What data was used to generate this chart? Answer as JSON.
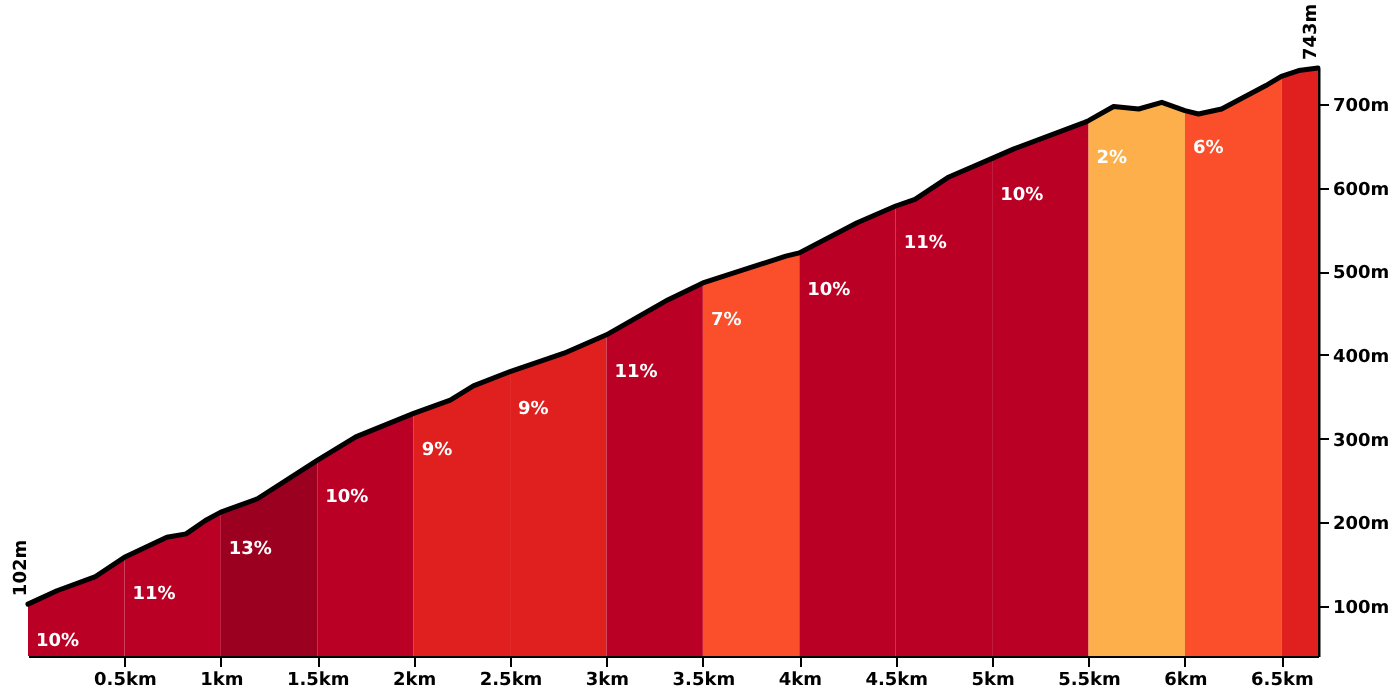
{
  "chart_data": {
    "type": "area",
    "xlim": [
      0,
      6.69
    ],
    "ylim": [
      40,
      743
    ],
    "xticks": [
      {
        "value": 0.5,
        "label": "0.5km"
      },
      {
        "value": 1,
        "label": "1km"
      },
      {
        "value": 1.5,
        "label": "1.5km"
      },
      {
        "value": 2,
        "label": "2km"
      },
      {
        "value": 2.5,
        "label": "2.5km"
      },
      {
        "value": 3,
        "label": "3km"
      },
      {
        "value": 3.5,
        "label": "3.5km"
      },
      {
        "value": 4,
        "label": "4km"
      },
      {
        "value": 4.5,
        "label": "4.5km"
      },
      {
        "value": 5,
        "label": "5km"
      },
      {
        "value": 5.5,
        "label": "5.5km"
      },
      {
        "value": 6,
        "label": "6km"
      },
      {
        "value": 6.5,
        "label": "6.5km"
      }
    ],
    "yticks": [
      {
        "value": 100,
        "label": "100m"
      },
      {
        "value": 200,
        "label": "200m"
      },
      {
        "value": 300,
        "label": "300m"
      },
      {
        "value": 400,
        "label": "400m"
      },
      {
        "value": 500,
        "label": "500m"
      },
      {
        "value": 600,
        "label": "600m"
      },
      {
        "value": 700,
        "label": "700m"
      }
    ],
    "grid": false,
    "series": [
      {
        "color": "#bb0026",
        "x": [
          0,
          0.15,
          0.35,
          0.5
        ],
        "values": [
          102,
          118,
          135,
          158
        ]
      },
      {
        "color": "#bb0026",
        "x": [
          0.5,
          0.72,
          0.82,
          0.92,
          1.0
        ],
        "values": [
          158,
          182,
          186,
          202,
          212
        ]
      },
      {
        "color": "#9b0020",
        "x": [
          1.0,
          1.19,
          1.5
        ],
        "values": [
          212,
          228,
          274
        ]
      },
      {
        "color": "#bb0026",
        "x": [
          1.5,
          1.7,
          2.0
        ],
        "values": [
          274,
          302,
          330
        ]
      },
      {
        "color": "#e01f1f",
        "x": [
          2.0,
          2.19,
          2.31,
          2.5
        ],
        "values": [
          330,
          346,
          363,
          380
        ]
      },
      {
        "color": "#e01f1f",
        "x": [
          2.5,
          2.78,
          3.0
        ],
        "values": [
          380,
          402,
          424
        ]
      },
      {
        "color": "#bb0026",
        "x": [
          3.0,
          3.32,
          3.5
        ],
        "values": [
          424,
          466,
          486
        ]
      },
      {
        "color": "#fa4f2a",
        "x": [
          3.5,
          3.93,
          4.0
        ],
        "values": [
          486,
          518,
          522
        ]
      },
      {
        "color": "#bb0026",
        "x": [
          4.0,
          4.3,
          4.5
        ],
        "values": [
          522,
          558,
          578
        ]
      },
      {
        "color": "#bb0026",
        "x": [
          4.5,
          4.6,
          4.77,
          5.0
        ],
        "values": [
          578,
          586,
          612,
          635
        ]
      },
      {
        "color": "#bb0026",
        "x": [
          5.0,
          5.11,
          5.48,
          5.5
        ],
        "values": [
          635,
          646,
          678,
          680
        ]
      },
      {
        "color": "#fcaf4b",
        "x": [
          5.5,
          5.63,
          5.76,
          5.88,
          6.0
        ],
        "values": [
          680,
          697,
          694,
          702,
          692
        ]
      },
      {
        "color": "#fa4f2a",
        "x": [
          6.0,
          6.07,
          6.19,
          6.42,
          6.5
        ],
        "values": [
          692,
          688,
          694,
          722,
          733
        ]
      },
      {
        "color": "#e01f1f",
        "x": [
          6.5,
          6.59,
          6.69
        ],
        "values": [
          733,
          740,
          743
        ]
      },
      {
        "type": "line",
        "color": "#000000",
        "x": [
          0,
          0.15,
          0.35,
          0.5,
          0.72,
          0.82,
          0.92,
          1.0,
          1.19,
          1.5,
          1.7,
          2.0,
          2.19,
          2.31,
          2.5,
          2.78,
          3.0,
          3.32,
          3.5,
          3.93,
          4.0,
          4.3,
          4.5,
          4.6,
          4.77,
          5.0,
          5.11,
          5.48,
          5.5,
          5.63,
          5.76,
          5.88,
          6.0,
          6.07,
          6.19,
          6.42,
          6.5,
          6.59,
          6.69
        ],
        "values": [
          102,
          118,
          135,
          158,
          182,
          186,
          202,
          212,
          228,
          274,
          302,
          330,
          346,
          363,
          380,
          402,
          424,
          466,
          486,
          518,
          522,
          558,
          578,
          586,
          612,
          635,
          646,
          678,
          680,
          697,
          694,
          702,
          692,
          688,
          694,
          722,
          733,
          740,
          743
        ]
      }
    ],
    "annotations": [
      {
        "text": "10%",
        "x": 0,
        "y": 102
      },
      {
        "text": "11%",
        "x": 0.5,
        "y": 158
      },
      {
        "text": "13%",
        "x": 1.0,
        "y": 212
      },
      {
        "text": "10%",
        "x": 1.5,
        "y": 274
      },
      {
        "text": "9%",
        "x": 2.0,
        "y": 330
      },
      {
        "text": "9%",
        "x": 2.5,
        "y": 380
      },
      {
        "text": "11%",
        "x": 3.0,
        "y": 424
      },
      {
        "text": "7%",
        "x": 3.5,
        "y": 486
      },
      {
        "text": "10%",
        "x": 4.0,
        "y": 522
      },
      {
        "text": "11%",
        "x": 4.5,
        "y": 578
      },
      {
        "text": "10%",
        "x": 5.0,
        "y": 635
      },
      {
        "text": "2%",
        "x": 5.5,
        "y": 680
      },
      {
        "text": "6%",
        "x": 6.0,
        "y": 692
      },
      {
        "text": "102m",
        "x": 0,
        "y": 102
      },
      {
        "text": "743m",
        "x": 6.69,
        "y": 743
      }
    ]
  }
}
